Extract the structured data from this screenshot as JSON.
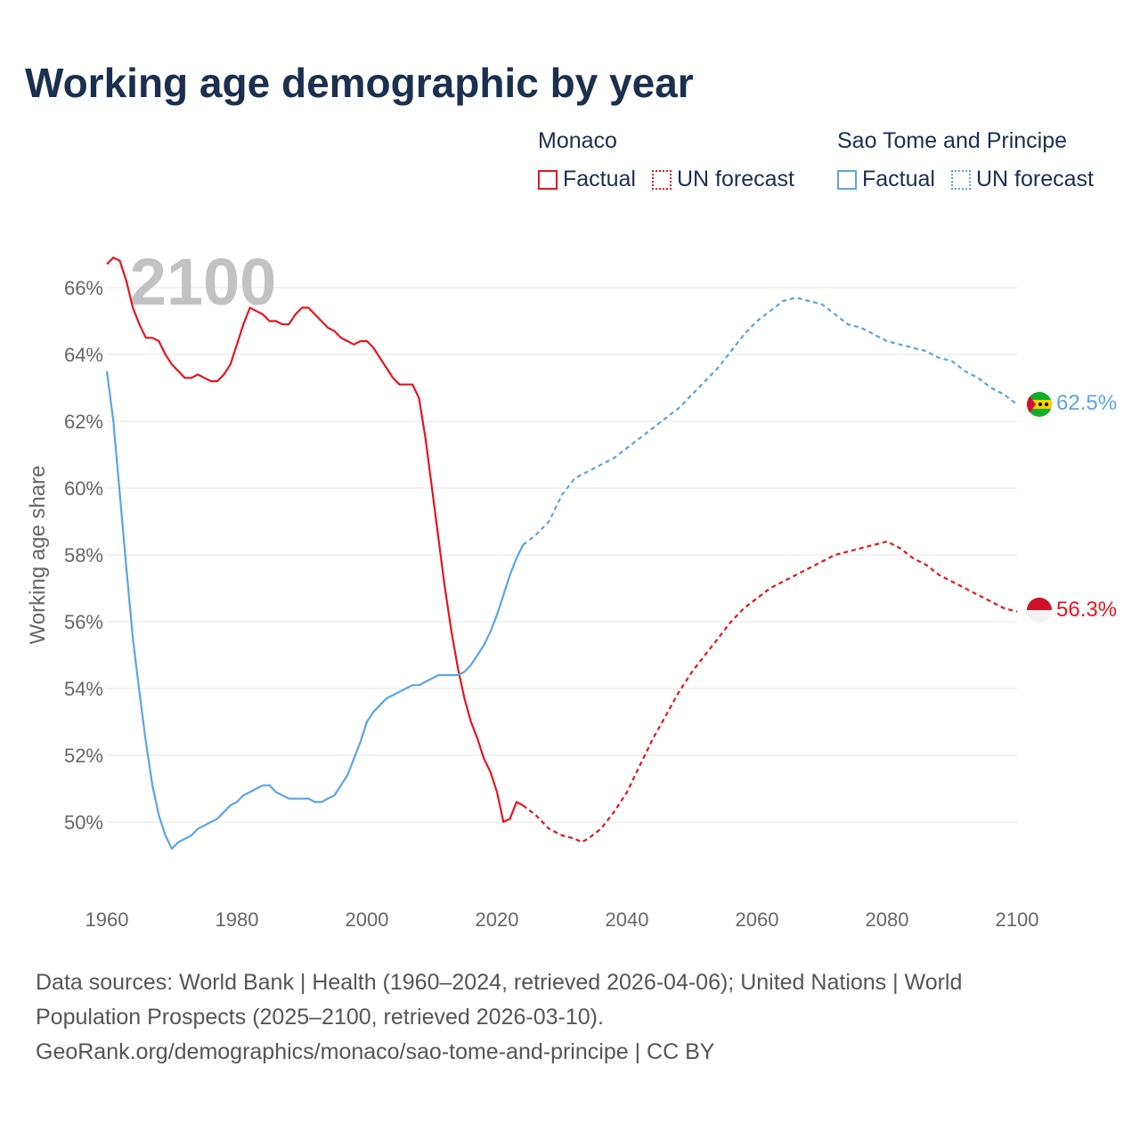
{
  "title": "Working age demographic by year",
  "legend": [
    {
      "group": "Monaco",
      "color": "#e8141c",
      "factual_label": "Factual",
      "forecast_label": "UN forecast"
    },
    {
      "group": "Sao Tome and Principe",
      "color": "#5aa4e6",
      "factual_label": "Factual",
      "forecast_label": "UN forecast"
    }
  ],
  "source": {
    "line1": "Data sources: World Bank | Health (1960–2024, retrieved 2026-04-06); United Nations | World",
    "line2": "Population Prospects (2025–2100, retrieved 2026-03-10).",
    "line3": "GeoRank.org/demographics/monaco/sao-tome-and-principe | CC BY"
  },
  "chart_data": {
    "type": "line",
    "title": "Working age demographic by year",
    "xlabel": "",
    "ylabel": "Working age share",
    "year_watermark": "2100",
    "xlim": [
      1960,
      2100
    ],
    "ylim": [
      48,
      67
    ],
    "x_ticks": [
      1960,
      1980,
      2000,
      2020,
      2040,
      2060,
      2080,
      2100
    ],
    "y_ticks": [
      50,
      52,
      54,
      56,
      58,
      60,
      62,
      64,
      66
    ],
    "y_tick_suffix": "%",
    "grid": true,
    "series": [
      {
        "name": "Monaco",
        "color": "#e8141c",
        "end_label": "56.3%",
        "flag": "monaco-flag-icon",
        "factual": {
          "x": [
            1960,
            1961,
            1962,
            1963,
            1964,
            1965,
            1966,
            1967,
            1968,
            1969,
            1970,
            1971,
            1972,
            1973,
            1974,
            1975,
            1976,
            1977,
            1978,
            1979,
            1980,
            1981,
            1982,
            1983,
            1984,
            1985,
            1986,
            1987,
            1988,
            1989,
            1990,
            1991,
            1992,
            1993,
            1994,
            1995,
            1996,
            1997,
            1998,
            1999,
            2000,
            2001,
            2002,
            2003,
            2004,
            2005,
            2006,
            2007,
            2008,
            2009,
            2010,
            2011,
            2012,
            2013,
            2014,
            2015,
            2016,
            2017,
            2018,
            2019,
            2020,
            2021,
            2022,
            2023,
            2024
          ],
          "y": [
            66.7,
            66.9,
            66.8,
            66.2,
            65.4,
            64.9,
            64.5,
            64.5,
            64.4,
            64.0,
            63.7,
            63.5,
            63.3,
            63.3,
            63.4,
            63.3,
            63.2,
            63.2,
            63.4,
            63.7,
            64.3,
            64.9,
            65.4,
            65.3,
            65.2,
            65.0,
            65.0,
            64.9,
            64.9,
            65.2,
            65.4,
            65.4,
            65.2,
            65.0,
            64.8,
            64.7,
            64.5,
            64.4,
            64.3,
            64.4,
            64.4,
            64.2,
            63.9,
            63.6,
            63.3,
            63.1,
            63.1,
            63.1,
            62.7,
            61.5,
            60.0,
            58.5,
            57.0,
            55.7,
            54.6,
            53.7,
            53.0,
            52.5,
            51.9,
            51.5,
            50.9,
            50.0,
            50.1,
            50.6,
            50.5
          ]
        },
        "forecast": {
          "x": [
            2024,
            2026,
            2028,
            2030,
            2032,
            2033,
            2034,
            2036,
            2038,
            2040,
            2042,
            2044,
            2046,
            2048,
            2050,
            2052,
            2054,
            2056,
            2058,
            2060,
            2062,
            2064,
            2066,
            2068,
            2070,
            2072,
            2074,
            2076,
            2078,
            2080,
            2082,
            2084,
            2086,
            2088,
            2090,
            2092,
            2094,
            2096,
            2098,
            2100
          ],
          "y": [
            50.5,
            50.2,
            49.8,
            49.6,
            49.5,
            49.4,
            49.5,
            49.8,
            50.3,
            50.9,
            51.7,
            52.5,
            53.2,
            53.9,
            54.5,
            55.0,
            55.5,
            56.0,
            56.4,
            56.7,
            57.0,
            57.2,
            57.4,
            57.6,
            57.8,
            58.0,
            58.1,
            58.2,
            58.3,
            58.4,
            58.2,
            57.9,
            57.7,
            57.4,
            57.2,
            57.0,
            56.8,
            56.6,
            56.4,
            56.3
          ]
        }
      },
      {
        "name": "Sao Tome and Principe",
        "color": "#5aa4e6",
        "end_label": "62.5%",
        "flag": "sao-tome-flag-icon",
        "factual": {
          "x": [
            1960,
            1961,
            1962,
            1963,
            1964,
            1965,
            1966,
            1967,
            1968,
            1969,
            1970,
            1971,
            1972,
            1973,
            1974,
            1975,
            1976,
            1977,
            1978,
            1979,
            1980,
            1981,
            1982,
            1983,
            1984,
            1985,
            1986,
            1987,
            1988,
            1989,
            1990,
            1991,
            1992,
            1993,
            1994,
            1995,
            1996,
            1997,
            1998,
            1999,
            2000,
            2001,
            2002,
            2003,
            2004,
            2005,
            2006,
            2007,
            2008,
            2009,
            2010,
            2011,
            2012,
            2013,
            2014,
            2015,
            2016,
            2017,
            2018,
            2019,
            2020,
            2021,
            2022,
            2023,
            2024
          ],
          "y": [
            63.5,
            62.0,
            59.8,
            57.6,
            55.5,
            53.9,
            52.4,
            51.1,
            50.2,
            49.6,
            49.2,
            49.4,
            49.5,
            49.6,
            49.8,
            49.9,
            50.0,
            50.1,
            50.3,
            50.5,
            50.6,
            50.8,
            50.9,
            51.0,
            51.1,
            51.1,
            50.9,
            50.8,
            50.7,
            50.7,
            50.7,
            50.7,
            50.6,
            50.6,
            50.7,
            50.8,
            51.1,
            51.4,
            51.9,
            52.4,
            53.0,
            53.3,
            53.5,
            53.7,
            53.8,
            53.9,
            54.0,
            54.1,
            54.1,
            54.2,
            54.3,
            54.4,
            54.4,
            54.4,
            54.4,
            54.5,
            54.7,
            55.0,
            55.3,
            55.7,
            56.2,
            56.8,
            57.4,
            57.9,
            58.3
          ]
        },
        "forecast": {
          "x": [
            2024,
            2026,
            2028,
            2030,
            2032,
            2034,
            2036,
            2038,
            2040,
            2042,
            2044,
            2046,
            2048,
            2050,
            2052,
            2054,
            2056,
            2058,
            2060,
            2062,
            2064,
            2066,
            2068,
            2070,
            2072,
            2074,
            2076,
            2078,
            2080,
            2082,
            2084,
            2086,
            2088,
            2090,
            2092,
            2094,
            2096,
            2098,
            2100
          ],
          "y": [
            58.3,
            58.6,
            59.0,
            59.8,
            60.3,
            60.5,
            60.7,
            60.9,
            61.2,
            61.5,
            61.8,
            62.1,
            62.4,
            62.8,
            63.2,
            63.6,
            64.1,
            64.6,
            65.0,
            65.3,
            65.6,
            65.7,
            65.6,
            65.5,
            65.2,
            64.9,
            64.8,
            64.6,
            64.4,
            64.3,
            64.2,
            64.1,
            63.9,
            63.8,
            63.5,
            63.3,
            63.0,
            62.8,
            62.5
          ]
        }
      }
    ]
  }
}
